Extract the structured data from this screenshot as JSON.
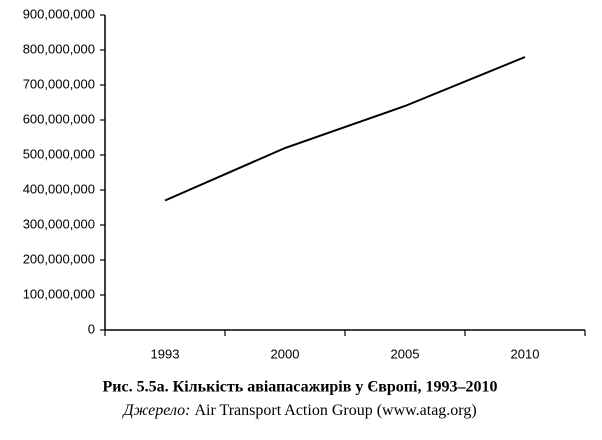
{
  "chart_data": {
    "type": "line",
    "title": "Рис. 5.5а. Кількість авіапасажирів у Європі, 1993–2010",
    "source_label": "Джерело:",
    "source": "Air Transport Action Group (www.atag.org)",
    "categories": [
      "1993",
      "2000",
      "2005",
      "2010"
    ],
    "values": [
      370000000,
      520000000,
      640000000,
      780000000
    ],
    "color": "#000000",
    "ylim": [
      0,
      900000000
    ],
    "yticks": [
      0,
      {
        "value": 100000000,
        "label": "100,000,000"
      },
      {
        "value": 200000000,
        "label": "200,000,000"
      },
      {
        "value": 300000000,
        "label": "300,000,000"
      },
      {
        "value": 400000000,
        "label": "400,000,000"
      },
      {
        "value": 500000000,
        "label": "500,000,000"
      },
      {
        "value": 600000000,
        "label": "600,000,000"
      },
      {
        "value": 700000000,
        "label": "700,000,000"
      },
      {
        "value": 800000000,
        "label": "800,000,000"
      },
      {
        "value": 900000000,
        "label": "900,000,000"
      }
    ],
    "grid": false
  }
}
